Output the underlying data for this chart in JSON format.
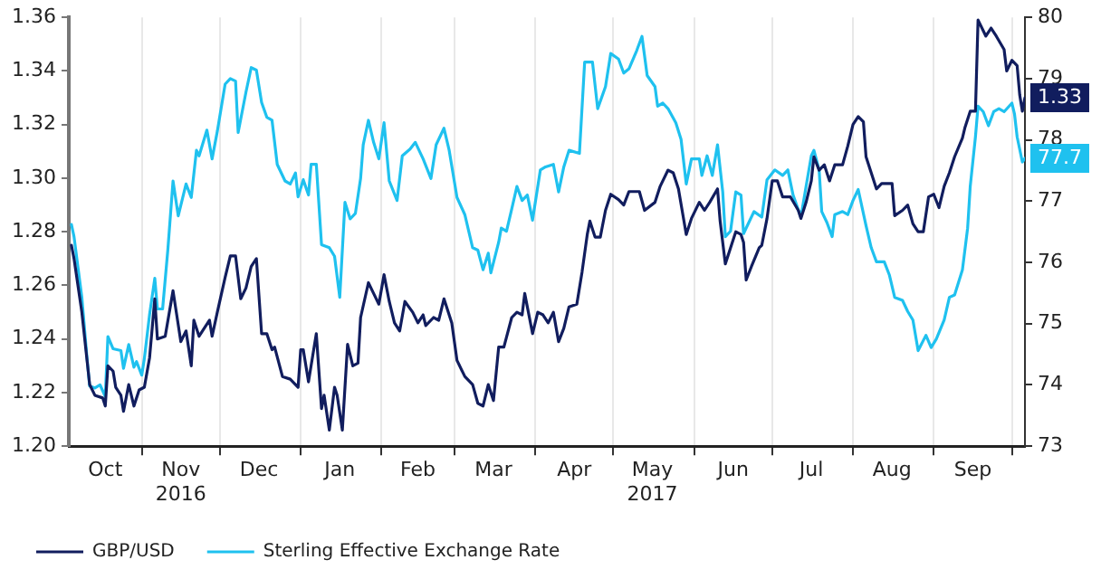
{
  "chart_data": {
    "type": "line",
    "xlim": [
      "2016-10-04",
      "2017-10-06"
    ],
    "xticks": [
      {
        "value": "2016-10-18",
        "label": "Oct"
      },
      {
        "value": "2016-11-01",
        "label": null
      },
      {
        "value": "2016-11-16",
        "label": "Nov\n2016"
      },
      {
        "value": "2016-12-01",
        "label": null
      },
      {
        "value": "2016-12-16",
        "label": "Dec"
      },
      {
        "value": "2017-01-01",
        "label": null
      },
      {
        "value": "2017-01-16",
        "label": "Jan"
      },
      {
        "value": "2017-02-01",
        "label": null
      },
      {
        "value": "2017-02-15",
        "label": "Feb"
      },
      {
        "value": "2017-03-01",
        "label": null
      },
      {
        "value": "2017-03-16",
        "label": "Mar"
      },
      {
        "value": "2017-04-01",
        "label": null
      },
      {
        "value": "2017-04-16",
        "label": "Apr"
      },
      {
        "value": "2017-05-01",
        "label": null
      },
      {
        "value": "2017-05-16",
        "label": "May\n2017"
      },
      {
        "value": "2017-06-01",
        "label": null
      },
      {
        "value": "2017-06-16",
        "label": "Jun"
      },
      {
        "value": "2017-07-01",
        "label": null
      },
      {
        "value": "2017-07-16",
        "label": "Jul"
      },
      {
        "value": "2017-08-01",
        "label": null
      },
      {
        "value": "2017-08-16",
        "label": "Aug"
      },
      {
        "value": "2017-09-01",
        "label": null
      },
      {
        "value": "2017-09-16",
        "label": "Sep"
      },
      {
        "value": "2017-10-01",
        "label": null
      }
    ],
    "ylim": [
      1.2,
      1.36
    ],
    "yticks": [
      {
        "value": 1.2,
        "label": "1.20"
      },
      {
        "value": 1.22,
        "label": "1.22"
      },
      {
        "value": 1.24,
        "label": "1.24"
      },
      {
        "value": 1.26,
        "label": "1.26"
      },
      {
        "value": 1.28,
        "label": "1.28"
      },
      {
        "value": 1.3,
        "label": "1.30"
      },
      {
        "value": 1.32,
        "label": "1.32"
      },
      {
        "value": 1.34,
        "label": "1.34"
      },
      {
        "value": 1.36,
        "label": "1.36"
      }
    ],
    "y2lim": [
      73,
      80
    ],
    "y2ticks": [
      73,
      74,
      75,
      76,
      77,
      78,
      79,
      80
    ],
    "grid": "x",
    "legend": "bottom left",
    "marker": "none",
    "line_style": "solid",
    "series": [
      {
        "name": "GBP/USD",
        "color": "#111d5e",
        "axis": "y",
        "x": [
          "2016-10-05",
          "2016-10-06",
          "2016-10-09",
          "2016-10-11",
          "2016-10-12",
          "2016-10-14",
          "2016-10-17",
          "2016-10-18",
          "2016-10-19",
          "2016-10-21",
          "2016-10-22",
          "2016-10-24",
          "2016-10-25",
          "2016-10-27",
          "2016-10-29",
          "2016-10-31",
          "2016-11-02",
          "2016-11-04",
          "2016-11-06",
          "2016-11-07",
          "2016-11-10",
          "2016-11-13",
          "2016-11-16",
          "2016-11-18",
          "2016-11-20",
          "2016-11-21",
          "2016-11-23",
          "2016-11-27",
          "2016-11-28",
          "2016-11-30",
          "2016-12-03",
          "2016-12-05",
          "2016-12-07",
          "2016-12-09",
          "2016-12-11",
          "2016-12-13",
          "2016-12-15",
          "2016-12-17",
          "2016-12-19",
          "2016-12-21",
          "2016-12-22",
          "2016-12-25",
          "2016-12-28",
          "2016-12-31",
          "2017-01-01",
          "2017-01-02",
          "2017-01-04",
          "2017-01-07",
          "2017-01-09",
          "2017-01-10",
          "2017-01-12",
          "2017-01-14",
          "2017-01-15",
          "2017-01-17",
          "2017-01-19",
          "2017-01-21",
          "2017-01-23",
          "2017-01-24",
          "2017-01-27",
          "2017-01-29",
          "2017-01-31",
          "2017-02-02",
          "2017-02-04",
          "2017-02-06",
          "2017-02-08",
          "2017-02-10",
          "2017-02-13",
          "2017-02-15",
          "2017-02-17",
          "2017-02-18",
          "2017-02-21",
          "2017-02-23",
          "2017-02-25",
          "2017-02-28",
          "2017-03-02",
          "2017-03-05",
          "2017-03-08",
          "2017-03-10",
          "2017-03-12",
          "2017-03-14",
          "2017-03-16",
          "2017-03-18",
          "2017-03-20",
          "2017-03-23",
          "2017-03-25",
          "2017-03-27",
          "2017-03-28",
          "2017-03-31",
          "2017-04-02",
          "2017-04-04",
          "2017-04-06",
          "2017-04-08",
          "2017-04-10",
          "2017-04-12",
          "2017-04-14",
          "2017-04-17",
          "2017-04-19",
          "2017-04-21",
          "2017-04-22",
          "2017-04-24",
          "2017-04-26",
          "2017-04-28",
          "2017-04-30",
          "2017-05-03",
          "2017-05-05",
          "2017-05-07",
          "2017-05-09",
          "2017-05-11",
          "2017-05-13",
          "2017-05-17",
          "2017-05-19",
          "2017-05-22",
          "2017-05-24",
          "2017-05-26",
          "2017-05-29",
          "2017-05-31",
          "2017-06-03",
          "2017-06-05",
          "2017-06-07",
          "2017-06-10",
          "2017-06-11",
          "2017-06-13",
          "2017-06-15",
          "2017-06-17",
          "2017-06-19",
          "2017-06-20",
          "2017-06-21",
          "2017-06-23",
          "2017-06-26",
          "2017-06-27",
          "2017-06-29",
          "2017-07-01",
          "2017-07-03",
          "2017-07-05",
          "2017-07-08",
          "2017-07-11",
          "2017-07-12",
          "2017-07-14",
          "2017-07-16",
          "2017-07-17",
          "2017-07-19",
          "2017-07-21",
          "2017-07-23",
          "2017-07-25",
          "2017-07-28",
          "2017-07-30",
          "2017-08-01",
          "2017-08-03",
          "2017-08-05",
          "2017-08-06",
          "2017-08-08",
          "2017-08-10",
          "2017-08-12",
          "2017-08-16",
          "2017-08-17",
          "2017-08-20",
          "2017-08-22",
          "2017-08-24",
          "2017-08-26",
          "2017-08-28",
          "2017-08-30",
          "2017-09-01",
          "2017-09-03",
          "2017-09-05",
          "2017-09-07",
          "2017-09-09",
          "2017-09-12",
          "2017-09-13",
          "2017-09-15",
          "2017-09-17",
          "2017-09-18",
          "2017-09-20",
          "2017-09-21",
          "2017-09-23",
          "2017-09-25",
          "2017-09-28",
          "2017-09-29",
          "2017-10-01",
          "2017-10-03",
          "2017-10-04",
          "2017-10-05",
          "2017-10-06"
        ],
        "values": [
          1.275,
          1.27,
          1.25,
          1.232,
          1.223,
          1.219,
          1.218,
          1.215,
          1.23,
          1.228,
          1.222,
          1.219,
          1.213,
          1.223,
          1.215,
          1.221,
          1.222,
          1.233,
          1.255,
          1.24,
          1.241,
          1.258,
          1.239,
          1.243,
          1.23,
          1.247,
          1.241,
          1.247,
          1.241,
          1.25,
          1.263,
          1.271,
          1.271,
          1.255,
          1.259,
          1.267,
          1.27,
          1.242,
          1.242,
          1.236,
          1.237,
          1.226,
          1.225,
          1.222,
          1.236,
          1.236,
          1.224,
          1.242,
          1.214,
          1.219,
          1.206,
          1.222,
          1.219,
          1.206,
          1.238,
          1.23,
          1.231,
          1.248,
          1.261,
          1.257,
          1.253,
          1.264,
          1.254,
          1.246,
          1.243,
          1.254,
          1.25,
          1.246,
          1.249,
          1.245,
          1.248,
          1.247,
          1.255,
          1.246,
          1.232,
          1.226,
          1.223,
          1.216,
          1.215,
          1.223,
          1.217,
          1.237,
          1.237,
          1.248,
          1.25,
          1.249,
          1.257,
          1.242,
          1.25,
          1.249,
          1.246,
          1.25,
          1.239,
          1.244,
          1.252,
          1.253,
          1.265,
          1.279,
          1.284,
          1.278,
          1.278,
          1.288,
          1.294,
          1.292,
          1.29,
          1.295,
          1.295,
          1.295,
          1.288,
          1.291,
          1.297,
          1.303,
          1.302,
          1.296,
          1.279,
          1.285,
          1.291,
          1.288,
          1.291,
          1.296,
          1.284,
          1.268,
          1.274,
          1.28,
          1.279,
          1.276,
          1.262,
          1.267,
          1.274,
          1.275,
          1.285,
          1.299,
          1.299,
          1.293,
          1.293,
          1.288,
          1.285,
          1.291,
          1.299,
          1.308,
          1.303,
          1.305,
          1.299,
          1.305,
          1.305,
          1.312,
          1.32,
          1.323,
          1.321,
          1.308,
          1.302,
          1.296,
          1.298,
          1.298,
          1.286,
          1.288,
          1.29,
          1.283,
          1.28,
          1.28,
          1.293,
          1.294,
          1.289,
          1.297,
          1.302,
          1.308,
          1.315,
          1.319,
          1.325,
          1.325,
          1.359,
          1.355,
          1.353,
          1.356,
          1.353,
          1.348,
          1.34,
          1.344,
          1.342,
          1.331,
          1.325,
          1.33
        ],
        "value_labels": [
          null,
          null,
          null,
          null,
          null,
          null,
          null,
          null,
          null,
          null,
          null,
          null,
          null,
          null,
          null,
          null,
          null,
          null,
          null,
          null,
          null,
          null,
          null,
          null,
          null,
          null,
          null,
          null,
          null,
          null,
          null,
          null,
          null,
          null,
          null,
          null,
          null,
          null,
          null,
          null,
          null,
          null,
          null,
          null,
          null,
          null,
          null,
          null,
          null,
          null,
          null,
          null,
          null,
          null,
          null,
          null,
          null,
          null,
          null,
          null,
          null,
          null,
          null,
          null,
          null,
          null,
          null,
          null,
          null,
          null,
          null,
          null,
          null,
          null,
          null,
          null,
          null,
          null,
          null,
          null,
          null,
          null,
          null,
          null,
          null,
          null,
          null,
          null,
          null,
          null,
          null,
          null,
          null,
          null,
          null,
          null,
          null,
          null,
          null,
          null,
          null,
          null,
          null,
          null,
          null,
          null,
          null,
          null,
          null,
          null,
          null,
          null,
          null,
          null,
          null,
          null,
          null,
          null,
          null,
          null,
          null,
          null,
          null,
          null,
          null,
          null,
          null,
          null,
          null,
          null,
          null,
          null,
          null,
          null,
          null,
          null,
          null,
          null,
          null,
          null,
          null,
          null,
          null,
          null,
          null,
          null,
          null,
          null,
          null,
          null,
          null,
          null,
          null,
          null,
          null,
          null,
          null,
          null,
          null,
          null,
          null,
          null,
          null,
          null,
          null,
          null,
          null,
          null,
          null,
          null,
          null,
          null,
          null,
          null,
          null,
          null,
          null,
          null,
          null,
          null,
          null,
          "1.33"
        ]
      },
      {
        "name": "Sterling Effective Exchange Rate",
        "color": "#1fc1ef",
        "axis": "y2",
        "x": [
          "2016-10-05",
          "2016-10-06",
          "2016-10-09",
          "2016-10-11",
          "2016-10-12",
          "2016-10-14",
          "2016-10-16",
          "2016-10-18",
          "2016-10-19",
          "2016-10-21",
          "2016-10-24",
          "2016-10-25",
          "2016-10-27",
          "2016-10-29",
          "2016-10-30",
          "2016-11-01",
          "2016-11-02",
          "2016-11-04",
          "2016-11-06",
          "2016-11-07",
          "2016-11-09",
          "2016-11-11",
          "2016-11-13",
          "2016-11-15",
          "2016-11-18",
          "2016-11-20",
          "2016-11-22",
          "2016-11-23",
          "2016-11-26",
          "2016-11-28",
          "2016-11-30",
          "2016-12-03",
          "2016-12-05",
          "2016-12-07",
          "2016-12-08",
          "2016-12-11",
          "2016-12-13",
          "2016-12-15",
          "2016-12-17",
          "2016-12-19",
          "2016-12-21",
          "2016-12-23",
          "2016-12-26",
          "2016-12-28",
          "2016-12-30",
          "2016-12-31",
          "2017-01-02",
          "2017-01-04",
          "2017-01-05",
          "2017-01-07",
          "2017-01-09",
          "2017-01-12",
          "2017-01-14",
          "2017-01-16",
          "2017-01-18",
          "2017-01-20",
          "2017-01-22",
          "2017-01-24",
          "2017-01-25",
          "2017-01-27",
          "2017-01-29",
          "2017-01-31",
          "2017-02-02",
          "2017-02-04",
          "2017-02-07",
          "2017-02-09",
          "2017-02-12",
          "2017-02-14",
          "2017-02-17",
          "2017-02-20",
          "2017-02-22",
          "2017-02-25",
          "2017-02-27",
          "2017-03-02",
          "2017-03-05",
          "2017-03-08",
          "2017-03-10",
          "2017-03-12",
          "2017-03-14",
          "2017-03-15",
          "2017-03-18",
          "2017-03-19",
          "2017-03-21",
          "2017-03-23",
          "2017-03-25",
          "2017-03-27",
          "2017-03-29",
          "2017-03-31",
          "2017-04-03",
          "2017-04-05",
          "2017-04-08",
          "2017-04-10",
          "2017-04-12",
          "2017-04-14",
          "2017-04-18",
          "2017-04-20",
          "2017-04-23",
          "2017-04-25",
          "2017-04-28",
          "2017-04-30",
          "2017-05-03",
          "2017-05-05",
          "2017-05-07",
          "2017-05-10",
          "2017-05-12",
          "2017-05-14",
          "2017-05-17",
          "2017-05-18",
          "2017-05-20",
          "2017-05-22",
          "2017-05-25",
          "2017-05-27",
          "2017-05-29",
          "2017-05-31",
          "2017-06-03",
          "2017-06-04",
          "2017-06-06",
          "2017-06-08",
          "2017-06-10",
          "2017-06-12",
          "2017-06-13",
          "2017-06-15",
          "2017-06-17",
          "2017-06-19",
          "2017-06-20",
          "2017-06-22",
          "2017-06-24",
          "2017-06-27",
          "2017-06-29",
          "2017-07-02",
          "2017-07-05",
          "2017-07-07",
          "2017-07-09",
          "2017-07-12",
          "2017-07-14",
          "2017-07-16",
          "2017-07-17",
          "2017-07-19",
          "2017-07-20",
          "2017-07-22",
          "2017-07-24",
          "2017-07-25",
          "2017-07-28",
          "2017-07-30",
          "2017-08-01",
          "2017-08-03",
          "2017-08-06",
          "2017-08-08",
          "2017-08-10",
          "2017-08-13",
          "2017-08-15",
          "2017-08-17",
          "2017-08-20",
          "2017-08-22",
          "2017-08-24",
          "2017-08-26",
          "2017-08-29",
          "2017-08-31",
          "2017-09-02",
          "2017-09-05",
          "2017-09-07",
          "2017-09-09",
          "2017-09-12",
          "2017-09-14",
          "2017-09-15",
          "2017-09-17",
          "2017-09-18",
          "2017-09-20",
          "2017-09-22",
          "2017-09-24",
          "2017-09-26",
          "2017-09-28",
          "2017-10-01",
          "2017-10-02",
          "2017-10-03",
          "2017-10-05",
          "2017-10-06"
        ],
        "values": [
          76.62,
          76.42,
          75.43,
          74.43,
          73.98,
          73.95,
          74.0,
          73.81,
          74.79,
          74.59,
          74.56,
          74.27,
          74.66,
          74.29,
          74.38,
          74.16,
          74.43,
          75.15,
          75.74,
          75.24,
          75.24,
          76.2,
          77.33,
          76.76,
          77.28,
          77.06,
          77.83,
          77.74,
          78.16,
          77.69,
          78.14,
          78.91,
          79.0,
          78.96,
          78.12,
          78.78,
          79.18,
          79.14,
          78.61,
          78.37,
          78.32,
          77.6,
          77.33,
          77.28,
          77.46,
          77.07,
          77.35,
          77.1,
          77.6,
          77.6,
          76.29,
          76.24,
          76.1,
          75.43,
          76.98,
          76.71,
          76.8,
          77.37,
          77.92,
          78.32,
          77.96,
          77.69,
          78.28,
          77.33,
          77.01,
          77.74,
          77.85,
          77.96,
          77.69,
          77.37,
          77.92,
          78.19,
          77.83,
          77.06,
          76.78,
          76.24,
          76.2,
          75.88,
          76.15,
          75.83,
          76.33,
          76.56,
          76.51,
          76.87,
          77.24,
          77.01,
          77.1,
          76.69,
          77.51,
          77.56,
          77.6,
          77.15,
          77.56,
          77.83,
          77.78,
          79.27,
          79.27,
          78.51,
          78.87,
          79.41,
          79.32,
          79.09,
          79.16,
          79.46,
          79.69,
          79.05,
          78.87,
          78.55,
          78.6,
          78.51,
          78.28,
          78.01,
          77.28,
          77.69,
          77.69,
          77.42,
          77.74,
          77.42,
          77.92,
          77.15,
          76.42,
          76.51,
          77.15,
          77.1,
          76.47,
          76.65,
          76.83,
          76.74,
          77.35,
          77.51,
          77.42,
          77.51,
          77.1,
          76.74,
          77.24,
          77.74,
          77.83,
          77.51,
          76.83,
          76.65,
          76.42,
          76.78,
          76.83,
          76.78,
          77.01,
          77.19,
          76.6,
          76.24,
          76.01,
          76.01,
          75.79,
          75.43,
          75.38,
          75.2,
          75.06,
          74.56,
          74.81,
          74.61,
          74.75,
          75.06,
          75.43,
          75.47,
          75.88,
          76.56,
          77.24,
          78.05,
          78.55,
          78.46,
          78.23,
          78.46,
          78.51,
          78.46,
          78.6,
          78.42,
          78.05,
          77.64,
          77.7
        ],
        "value_labels": [
          null,
          null,
          null,
          null,
          null,
          null,
          null,
          null,
          null,
          null,
          null,
          null,
          null,
          null,
          null,
          null,
          null,
          null,
          null,
          null,
          null,
          null,
          null,
          null,
          null,
          null,
          null,
          null,
          null,
          null,
          null,
          null,
          null,
          null,
          null,
          null,
          null,
          null,
          null,
          null,
          null,
          null,
          null,
          null,
          null,
          null,
          null,
          null,
          null,
          null,
          null,
          null,
          null,
          null,
          null,
          null,
          null,
          null,
          null,
          null,
          null,
          null,
          null,
          null,
          null,
          null,
          null,
          null,
          null,
          null,
          null,
          null,
          null,
          null,
          null,
          null,
          null,
          null,
          null,
          null,
          null,
          null,
          null,
          null,
          null,
          null,
          null,
          null,
          null,
          null,
          null,
          null,
          null,
          null,
          null,
          null,
          null,
          null,
          null,
          null,
          null,
          null,
          null,
          null,
          null,
          null,
          null,
          null,
          null,
          null,
          null,
          null,
          null,
          null,
          null,
          null,
          null,
          null,
          null,
          null,
          null,
          null,
          null,
          null,
          null,
          null,
          null,
          null,
          null,
          null,
          null,
          null,
          null,
          null,
          null,
          null,
          null,
          null,
          null,
          null,
          null,
          null,
          null,
          null,
          null,
          null,
          null,
          null,
          null,
          null,
          null,
          null,
          null,
          null,
          null,
          null,
          null,
          null,
          null,
          null,
          null,
          null,
          null,
          null,
          null,
          null,
          null,
          null,
          null,
          null,
          null,
          null,
          null,
          null,
          null,
          null,
          "77.7"
        ]
      }
    ]
  }
}
